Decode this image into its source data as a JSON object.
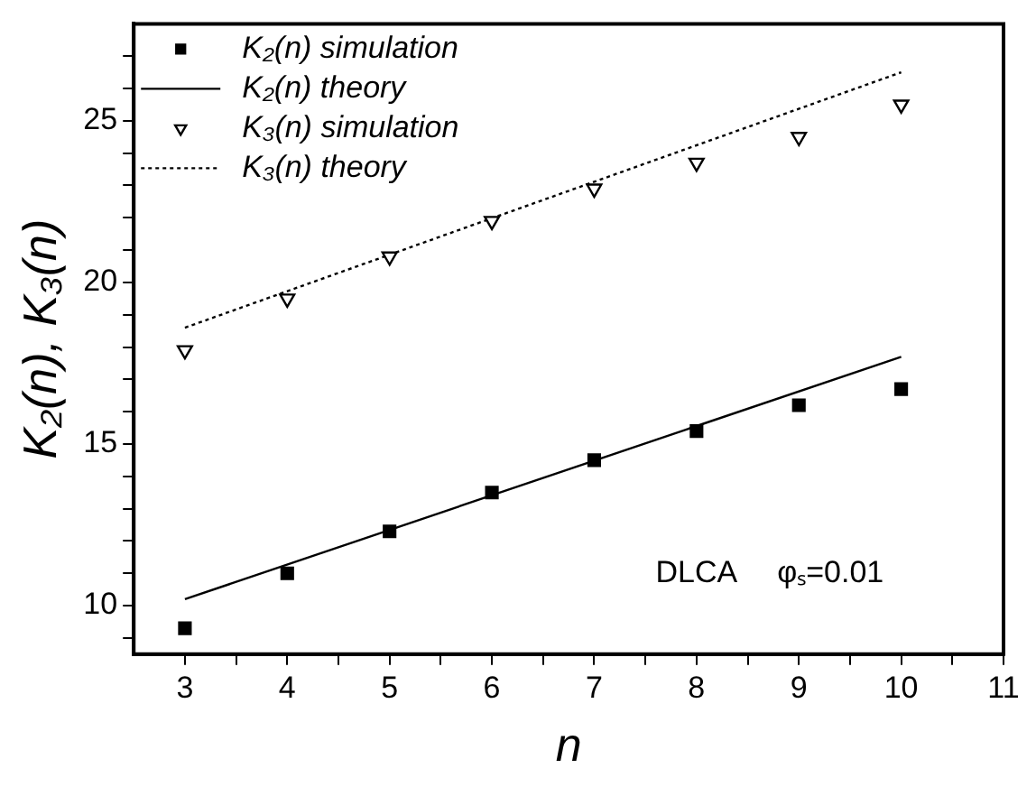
{
  "chart_data": {
    "type": "scatter",
    "xlabel": "n",
    "ylabel": "K₂(n), K₃(n)",
    "xlim": [
      2.5,
      11
    ],
    "ylim": [
      8.5,
      28
    ],
    "xticks": [
      3,
      {
        "value": 3.5,
        "label": null
      },
      4,
      {
        "value": 4.5,
        "label": null
      },
      5,
      {
        "value": 5.5,
        "label": null
      },
      6,
      {
        "value": 6.5,
        "label": null
      },
      7,
      {
        "value": 7.5,
        "label": null
      },
      8,
      {
        "value": 8.5,
        "label": null
      },
      9,
      {
        "value": 9.5,
        "label": null
      },
      10,
      {
        "value": 10.5,
        "label": null
      },
      11
    ],
    "yticks": [
      {
        "value": 9,
        "label": null
      },
      10,
      {
        "value": 11,
        "label": null
      },
      {
        "value": 12,
        "label": null
      },
      {
        "value": 13,
        "label": null
      },
      {
        "value": 14,
        "label": null
      },
      15,
      {
        "value": 16,
        "label": null
      },
      {
        "value": 17,
        "label": null
      },
      {
        "value": 18,
        "label": null
      },
      {
        "value": 19,
        "label": null
      },
      20,
      {
        "value": 21,
        "label": null
      },
      {
        "value": 22,
        "label": null
      },
      {
        "value": 23,
        "label": null
      },
      {
        "value": 24,
        "label": null
      },
      25,
      {
        "value": 26,
        "label": null
      },
      {
        "value": 27,
        "label": null
      }
    ],
    "grid": false,
    "legend": "top left",
    "series": [
      {
        "name": "K₂(n) simulation",
        "marker": "square",
        "color": "#000000",
        "x": [
          3,
          4,
          5,
          6,
          7,
          8,
          9,
          10
        ],
        "values": [
          9.3,
          11.0,
          12.3,
          13.5,
          14.5,
          15.4,
          16.2,
          16.7
        ]
      },
      {
        "name": "K₂(n) theory",
        "type": "line",
        "marker": "none",
        "line_style": "solid",
        "color": "#000000",
        "x": [
          3,
          10
        ],
        "values": [
          10.2,
          17.7
        ]
      },
      {
        "name": "K₃(n) simulation",
        "marker": "triangle",
        "color": "#000000",
        "x": [
          3,
          4,
          5,
          6,
          7,
          8,
          9,
          10
        ],
        "values": [
          17.9,
          19.5,
          20.8,
          21.9,
          22.9,
          23.7,
          24.5,
          25.5
        ]
      },
      {
        "name": "K₃(n) theory",
        "type": "line",
        "marker": "none",
        "line_style": "dotted",
        "color": "#000000",
        "x": [
          3,
          10
        ],
        "values": [
          18.6,
          26.5
        ]
      }
    ],
    "annotations": [
      "DLCA",
      "φₛ=0.01"
    ]
  }
}
